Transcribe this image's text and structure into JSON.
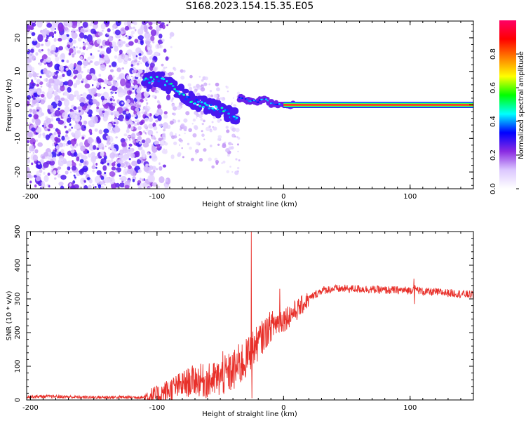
{
  "title": "S168.2023.154.15.35.E05",
  "colors": {
    "snr_line": "#e8302a",
    "frame": "#000000",
    "colormap": [
      "#ffffff",
      "#dcc8ff",
      "#8a2be2",
      "#0000ff",
      "#00ffff",
      "#00ff00",
      "#ffff00",
      "#ff8000",
      "#ff0000",
      "#ff0066"
    ]
  },
  "chart_data": [
    {
      "type": "heatmap",
      "title": "",
      "xlabel": "Height of straight line (km)",
      "ylabel": "Frequency (Hz)",
      "xlim": [
        -203,
        150
      ],
      "ylim": [
        -25,
        25
      ],
      "xticks": [
        -200,
        -100,
        0,
        100
      ],
      "yticks": [
        -20,
        -10,
        0,
        10,
        20
      ],
      "colorbar": {
        "label": "Normalized spectral amplitude",
        "range": [
          0,
          1
        ],
        "ticks": [
          0.0,
          0.2,
          0.4,
          0.6,
          0.8
        ]
      },
      "features": {
        "noise_region_x": [
          -203,
          -110
        ],
        "chirp_ridge": [
          [
            -110,
            7
          ],
          [
            -100,
            8
          ],
          [
            -90,
            6
          ],
          [
            -80,
            3
          ],
          [
            -70,
            1
          ],
          [
            -60,
            0
          ],
          [
            -50,
            -1.5
          ],
          [
            -40,
            -3
          ],
          [
            -37,
            -3.5
          ]
        ],
        "plateau_ridge": [
          [
            -35,
            2
          ],
          [
            -30,
            1.5
          ],
          [
            -20,
            1
          ],
          [
            -15,
            2
          ],
          [
            -10,
            0.5
          ],
          [
            0,
            0
          ],
          [
            10,
            0
          ]
        ],
        "carrier_line_x": [
          0,
          150
        ],
        "carrier_frequency": 0,
        "carrier_amplitude": 1.0
      }
    },
    {
      "type": "line",
      "title": "",
      "xlabel": "Height of straight line (km)",
      "ylabel": "SNR (10 * v/v)",
      "xlim": [
        -203,
        150
      ],
      "ylim": [
        0,
        500
      ],
      "xticks": [
        -200,
        -100,
        0,
        100
      ],
      "yticks": [
        0,
        100,
        200,
        300,
        400,
        500
      ],
      "series": [
        {
          "x": [
            -203,
            -180,
            -160,
            -140,
            -120,
            -110,
            -100,
            -90,
            -80,
            -70,
            -60,
            -50,
            -40,
            -30,
            -25,
            -20,
            -10,
            0,
            10,
            20,
            30,
            40,
            50,
            60,
            70,
            80,
            90,
            100,
            103,
            110,
            120,
            130,
            140,
            150
          ],
          "y": [
            10,
            10,
            8,
            8,
            8,
            8,
            12,
            30,
            45,
            60,
            55,
            65,
            85,
            120,
            150,
            170,
            220,
            240,
            265,
            300,
            325,
            330,
            330,
            330,
            328,
            326,
            326,
            325,
            330,
            322,
            320,
            318,
            315,
            312
          ],
          "spikes": [
            {
              "x": -25.5,
              "y": 500
            },
            {
              "x": -25.0,
              "y": 5
            },
            {
              "x": -3,
              "y": 330
            },
            {
              "x": 103,
              "y": 360
            },
            {
              "x": 103.5,
              "y": 285
            },
            {
              "x": -48,
              "y": 145
            },
            {
              "x": -38,
              "y": 80
            }
          ]
        }
      ]
    }
  ]
}
